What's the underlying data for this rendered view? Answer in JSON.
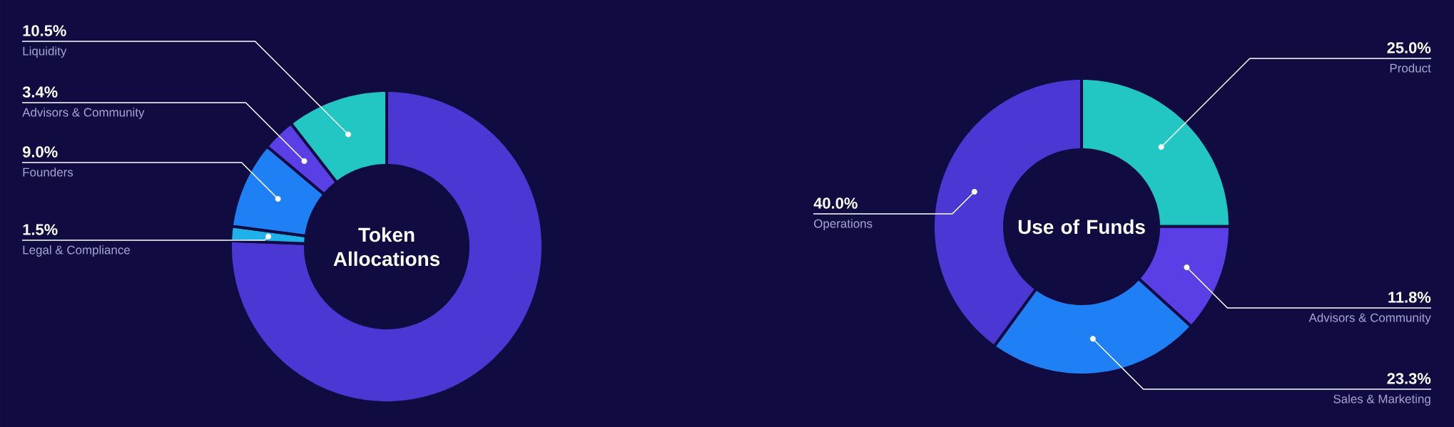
{
  "chart_data": [
    {
      "type": "donut",
      "title": "Token Allocations",
      "categories": [
        null,
        "Legal & Compliance",
        "Founders",
        "Advisors & Community",
        "Liquidity"
      ],
      "values": [
        75.6,
        1.5,
        9.0,
        3.4,
        10.5
      ],
      "colors": [
        "#4b38d4",
        "#1fb2ea",
        "#1e80f4",
        "#5a3fe6",
        "#22c7c3"
      ],
      "value_labels": [
        null,
        "1.5%",
        "9.0%",
        "3.4%",
        "10.5%"
      ]
    },
    {
      "type": "donut",
      "title": "Use of Funds",
      "categories": [
        "Product",
        "Advisors & Community",
        "Sales & Marketing",
        "Operations"
      ],
      "values": [
        25.0,
        11.8,
        23.3,
        40.0
      ],
      "colors": [
        "#22c7c3",
        "#5a3fe6",
        "#1e80f4",
        "#4b38d4"
      ],
      "value_labels": [
        "25.0%",
        "11.8%",
        "23.3%",
        "40.0%"
      ]
    }
  ]
}
